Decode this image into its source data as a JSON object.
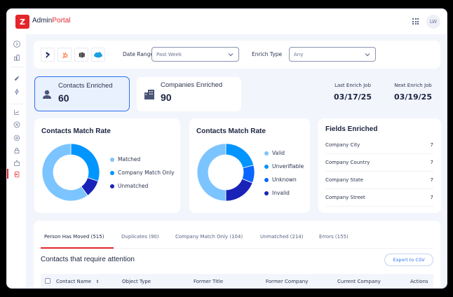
{
  "app": {
    "logo_letter": "Z",
    "brand_part1": "Admin",
    "brand_part2": "Portal",
    "brand_color": "#e3262b",
    "user_initials": "LW",
    "apps_icon": "grid-icon"
  },
  "sidebar": {
    "items": [
      {
        "icon": "expand-chevron-icon"
      },
      {
        "icon": "building-chart-icon"
      },
      {
        "icon": "rocket-icon"
      },
      {
        "icon": "bolt-icon"
      },
      {
        "icon": "line-chart-icon"
      },
      {
        "icon": "user-circle-icon"
      },
      {
        "icon": "gear-icon"
      },
      {
        "icon": "lock-icon"
      },
      {
        "icon": "puzzle-icon"
      },
      {
        "icon": "logout-icon",
        "active": true
      }
    ]
  },
  "filters": {
    "integrations": [
      "dynamics-icon",
      "hubspot-icon",
      "intercom-icon",
      "salesforce-icon"
    ],
    "date_range_label": "Date Range",
    "date_range_value": "Past Week",
    "enrich_type_label": "Enrich Type",
    "enrich_type_value": "Any"
  },
  "stats": {
    "contacts": {
      "label": "Contacts Enriched",
      "value": "60"
    },
    "companies": {
      "label": "Companies Enriched",
      "value": "90"
    },
    "last_job": {
      "label": "Last Enrich Job",
      "value": "03/17/25"
    },
    "next_job": {
      "label": "Next Enrich Job",
      "value": "03/19/25"
    }
  },
  "chart_data": [
    {
      "type": "pie",
      "title": "Contacts Match Rate",
      "categories": [
        "Company Match Only",
        "Unmatched",
        "Matched"
      ],
      "values": [
        30,
        10,
        60
      ],
      "colors": [
        "#0095ff",
        "#1a23b8",
        "#7cc4ff"
      ],
      "legend": [
        "Matched",
        "Company Match Only",
        "Unmatched"
      ],
      "legend_colors": [
        "#7cc4ff",
        "#0095ff",
        "#1a23b8"
      ],
      "legend_position": "right"
    },
    {
      "type": "pie",
      "title": "Contacts Match Rate",
      "categories": [
        "Unverifiable",
        "Unknown",
        "Invalid",
        "Valid"
      ],
      "values": [
        21,
        10,
        19,
        50
      ],
      "colors": [
        "#0095ff",
        "#0a66ff",
        "#1a23b8",
        "#7cc4ff"
      ],
      "legend": [
        "Valid",
        "Unverifiable",
        "Unknown",
        "Invalid"
      ],
      "legend_colors": [
        "#7cc4ff",
        "#0095ff",
        "#0a66ff",
        "#1a23b8"
      ],
      "legend_position": "right"
    }
  ],
  "fields_enriched": {
    "title": "Fields Enriched",
    "rows": [
      {
        "name": "Company City",
        "value": "7"
      },
      {
        "name": "Company Country",
        "value": "7"
      },
      {
        "name": "Company State",
        "value": "7"
      },
      {
        "name": "Company Street",
        "value": "7"
      }
    ]
  },
  "table": {
    "tabs": [
      {
        "label": "Person Has Moved (515)",
        "active": true
      },
      {
        "label": "Duplicates (90)"
      },
      {
        "label": "Company Match Only (104)"
      },
      {
        "label": "Unmatched (214)"
      },
      {
        "label": "Errors (155)"
      }
    ],
    "title": "Contacts that require attention",
    "export_label": "Export to CSV",
    "columns": [
      "Contact Name",
      "Object Type",
      "Former Title",
      "Former Company",
      "Current Company",
      "Actions"
    ],
    "accent": "#2d6ff0"
  }
}
